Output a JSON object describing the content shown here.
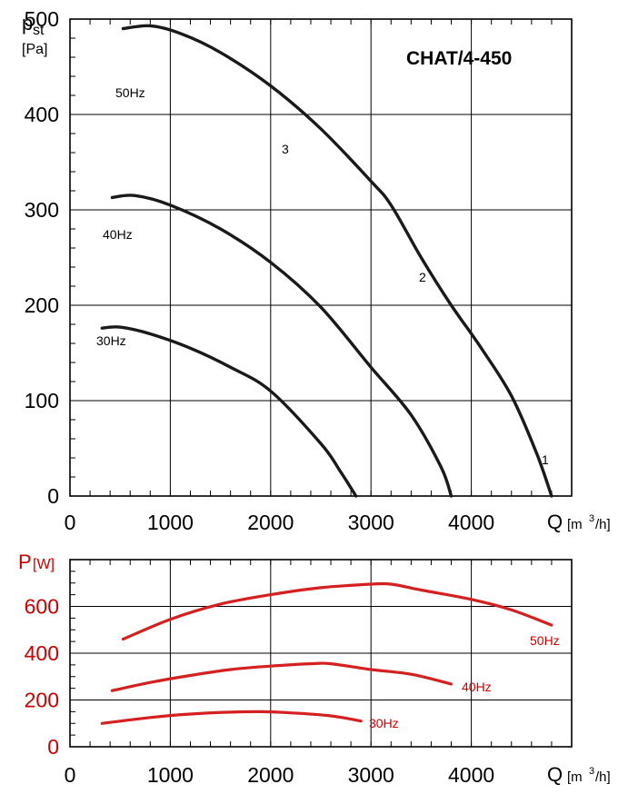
{
  "chart_data": [
    {
      "type": "line",
      "title": "CHAT/4-450",
      "ylabel_symbol": "p",
      "ylabel_subscript": "st",
      "ylabel_unit": "[Pa]",
      "xlabel": "Q",
      "xlabel_unit_prefix": "[m",
      "xlabel_unit_sup": "3",
      "xlabel_unit_suffix": "/h]",
      "xlim": [
        0,
        5000
      ],
      "ylim": [
        0,
        500
      ],
      "xticks": [
        0,
        1000,
        2000,
        3000,
        4000
      ],
      "yticks": [
        0,
        100,
        200,
        300,
        400,
        500
      ],
      "series": [
        {
          "name": "50Hz",
          "color": "#1a1a1a",
          "x": [
            530,
            800,
            1100,
            1500,
            2000,
            2500,
            3000,
            3200,
            3500,
            3800,
            4100,
            4400,
            4650,
            4800
          ],
          "y": [
            490,
            493,
            485,
            465,
            430,
            385,
            330,
            305,
            250,
            200,
            155,
            105,
            45,
            0
          ]
        },
        {
          "name": "40Hz",
          "color": "#1a1a1a",
          "x": [
            420,
            650,
            1000,
            1500,
            2000,
            2500,
            3000,
            3400,
            3700,
            3800
          ],
          "y": [
            313,
            315,
            305,
            280,
            245,
            198,
            135,
            85,
            30,
            0
          ]
        },
        {
          "name": "30Hz",
          "color": "#1a1a1a",
          "x": [
            320,
            500,
            800,
            1200,
            1600,
            2000,
            2500,
            2700,
            2850
          ],
          "y": [
            176,
            177,
            170,
            155,
            135,
            110,
            55,
            25,
            0
          ]
        }
      ],
      "curve_labels": [
        "50Hz",
        "40Hz",
        "30Hz"
      ],
      "annotations": [
        "3",
        "2",
        "1"
      ]
    },
    {
      "type": "line",
      "ylabel_symbol": "P",
      "ylabel_unit": "[W]",
      "xlabel": "Q",
      "xlabel_unit_prefix": "[m",
      "xlabel_unit_sup": "3",
      "xlabel_unit_suffix": "/h]",
      "xlim": [
        0,
        5000
      ],
      "ylim": [
        0,
        800
      ],
      "xticks": [
        0,
        1000,
        2000,
        3000,
        4000
      ],
      "yticks": [
        0,
        200,
        400,
        600
      ],
      "series": [
        {
          "name": "50Hz",
          "color": "#d42020",
          "x": [
            530,
            1000,
            1500,
            2000,
            2500,
            3000,
            3200,
            3500,
            4000,
            4400,
            4800
          ],
          "y": [
            460,
            545,
            610,
            650,
            680,
            695,
            695,
            670,
            630,
            585,
            520
          ]
        },
        {
          "name": "40Hz",
          "color": "#d42020",
          "x": [
            420,
            800,
            1200,
            1600,
            2000,
            2400,
            2600,
            3000,
            3400,
            3800
          ],
          "y": [
            240,
            275,
            305,
            330,
            345,
            355,
            355,
            330,
            310,
            268
          ]
        },
        {
          "name": "30Hz",
          "color": "#d42020",
          "x": [
            320,
            800,
            1200,
            1600,
            1900,
            2200,
            2600,
            2900
          ],
          "y": [
            100,
            125,
            140,
            148,
            150,
            145,
            132,
            110
          ]
        }
      ],
      "curve_labels": [
        "50Hz",
        "40Hz",
        "30Hz"
      ]
    }
  ]
}
